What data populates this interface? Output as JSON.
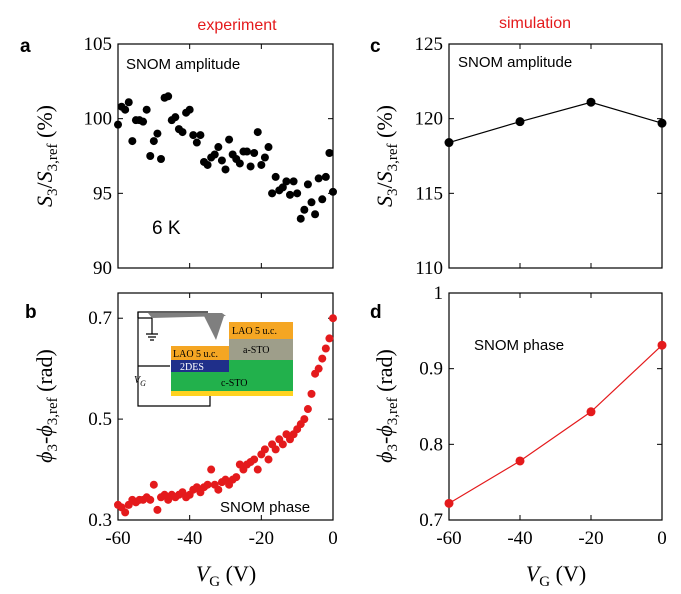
{
  "headers": {
    "experiment": "experiment",
    "simulation": "simulation"
  },
  "panel_labels": {
    "a": "a",
    "b": "b",
    "c": "c",
    "d": "d"
  },
  "annotations": {
    "a_amp": "SNOM amplitude",
    "a_temp": "6 K",
    "b_phase": "SNOM phase",
    "c_amp": "SNOM amplitude",
    "d_phase": "SNOM phase"
  },
  "inset": {
    "lao_top": "LAO 5 u.c.",
    "a_sto": "a-STO",
    "lao_left": "LAO 5 u.c.",
    "twodes": "2DES",
    "c_sto": "c-STO",
    "vg": "V",
    "vg_sub": "G"
  },
  "axes": {
    "amp_ylabel": "S3/S3,ref (%)",
    "phase_ylabel": "φ3-φ3,ref (rad)",
    "xlabel": "VG (V)"
  },
  "colors": {
    "header": "#e41a1c",
    "sim_phase": "#e41a1c",
    "exp_phase": "#e41a1c",
    "exp_amp": "#000000",
    "sim_amp": "#000000"
  },
  "chart_data": [
    {
      "id": "a",
      "type": "scatter",
      "title": "",
      "xlim": [
        -60,
        0
      ],
      "ylim": [
        90,
        105
      ],
      "xticks": [
        -60,
        -40,
        -20,
        0
      ],
      "yticks": [
        90,
        95,
        100,
        105
      ],
      "x_tick_labels_shown": false,
      "series": [
        {
          "color": "#000000",
          "x": [
            -60,
            -59,
            -58,
            -57,
            -56,
            -55,
            -54,
            -53,
            -52,
            -51,
            -50,
            -49,
            -48,
            -47,
            -46,
            -45,
            -44,
            -43,
            -42,
            -41,
            -40,
            -39,
            -38,
            -37,
            -36,
            -35,
            -34,
            -33,
            -32,
            -31,
            -30,
            -29,
            -28,
            -27,
            -26,
            -25,
            -24,
            -23,
            -22,
            -21,
            -20,
            -19,
            -18,
            -17,
            -16,
            -15,
            -14,
            -13,
            -12,
            -11,
            -10,
            -9,
            -8,
            -7,
            -6,
            -5,
            -4,
            -3,
            -2,
            -1,
            0
          ],
          "y": [
            99.6,
            100.8,
            100.6,
            101.1,
            98.5,
            99.9,
            99.9,
            99.8,
            100.6,
            97.5,
            98.5,
            99.0,
            97.3,
            101.4,
            101.5,
            99.9,
            100.1,
            99.3,
            99.1,
            100.4,
            100.6,
            98.9,
            98.4,
            98.9,
            97.1,
            96.9,
            97.4,
            97.6,
            98.1,
            97.2,
            96.6,
            98.6,
            97.6,
            97.3,
            97.0,
            97.8,
            97.8,
            96.8,
            97.7,
            99.1,
            96.9,
            97.4,
            98.1,
            95.0,
            96.1,
            95.2,
            95.4,
            95.8,
            94.9,
            95.8,
            95.0,
            93.3,
            93.9,
            95.6,
            94.4,
            93.6,
            96.0,
            94.6,
            96.1,
            97.7,
            95.1
          ]
        }
      ]
    },
    {
      "id": "b",
      "type": "scatter",
      "title": "",
      "xlim": [
        -60,
        0
      ],
      "ylim": [
        0.3,
        0.75
      ],
      "xticks": [
        -60,
        -40,
        -20,
        0
      ],
      "yticks": [
        0.3,
        0.5,
        0.7
      ],
      "xlabel": "VG (V)",
      "series": [
        {
          "color": "#e41a1c",
          "x": [
            -60,
            -59,
            -58,
            -57,
            -56,
            -55,
            -54,
            -53,
            -52,
            -51,
            -50,
            -49,
            -48,
            -47,
            -46,
            -45,
            -44,
            -43,
            -42,
            -41,
            -40,
            -39,
            -38,
            -37,
            -36,
            -35,
            -34,
            -33,
            -32,
            -31,
            -30,
            -29,
            -28,
            -27,
            -26,
            -25,
            -24,
            -23,
            -22,
            -21,
            -20,
            -19,
            -18,
            -17,
            -16,
            -15,
            -14,
            -13,
            -12,
            -11,
            -10,
            -9,
            -8,
            -7,
            -6,
            -5,
            -4,
            -3,
            -2,
            -1,
            0
          ],
          "y": [
            0.33,
            0.325,
            0.315,
            0.33,
            0.34,
            0.335,
            0.34,
            0.34,
            0.345,
            0.34,
            0.37,
            0.32,
            0.345,
            0.35,
            0.34,
            0.35,
            0.345,
            0.35,
            0.355,
            0.345,
            0.35,
            0.36,
            0.365,
            0.355,
            0.365,
            0.37,
            0.4,
            0.37,
            0.36,
            0.375,
            0.38,
            0.37,
            0.38,
            0.385,
            0.41,
            0.4,
            0.41,
            0.415,
            0.42,
            0.4,
            0.43,
            0.44,
            0.42,
            0.45,
            0.44,
            0.46,
            0.45,
            0.47,
            0.46,
            0.47,
            0.48,
            0.49,
            0.5,
            0.52,
            0.55,
            0.59,
            0.6,
            0.62,
            0.64,
            0.66,
            0.7
          ]
        }
      ]
    },
    {
      "id": "c",
      "type": "line",
      "title": "",
      "xlim": [
        -60,
        0
      ],
      "ylim": [
        110,
        125
      ],
      "xticks": [
        -60,
        -40,
        -20,
        0
      ],
      "yticks": [
        110,
        115,
        120,
        125
      ],
      "x_tick_labels_shown": false,
      "series": [
        {
          "color": "#000000",
          "x": [
            -60,
            -40,
            -20,
            0
          ],
          "y": [
            118.4,
            119.8,
            121.1,
            119.7
          ]
        }
      ]
    },
    {
      "id": "d",
      "type": "line",
      "title": "",
      "xlim": [
        -60,
        0
      ],
      "ylim": [
        0.7,
        1.0
      ],
      "xticks": [
        -60,
        -40,
        -20,
        0
      ],
      "yticks": [
        0.7,
        0.8,
        0.9,
        1.0
      ],
      "ytick_labels": [
        "0.7",
        "0.8",
        "0.9",
        "1"
      ],
      "xlabel": "VG (V)",
      "series": [
        {
          "color": "#e41a1c",
          "x": [
            -60,
            -40,
            -20,
            0
          ],
          "y": [
            0.722,
            0.778,
            0.843,
            0.931
          ]
        }
      ]
    }
  ]
}
